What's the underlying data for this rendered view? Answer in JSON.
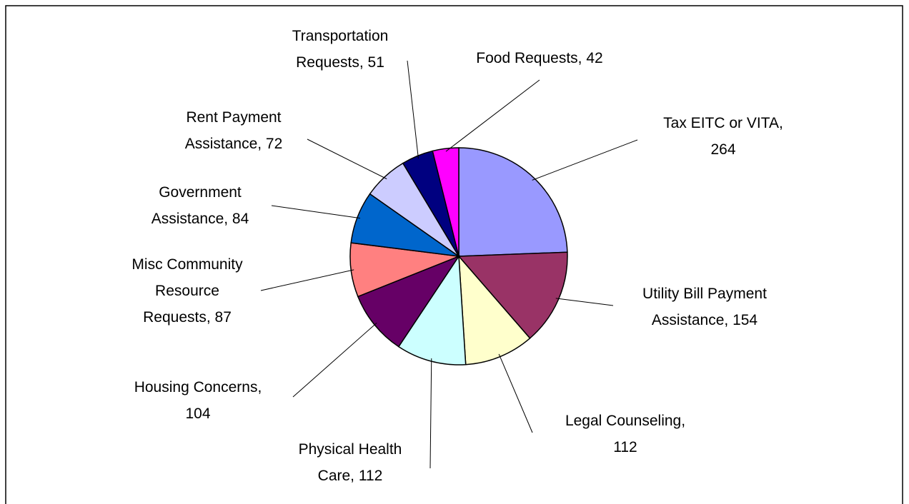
{
  "chart_data": {
    "type": "pie",
    "values": [
      264,
      154,
      112,
      112,
      104,
      87,
      84,
      72,
      51,
      42
    ],
    "value_labels": [
      "Tax EITC or VITA, 264",
      "Utility Bill Payment Assistance, 154",
      "Legal Counseling, 112",
      "Physical Health Care, 112",
      "Housing Concerns, 104",
      "Misc Community Resource Requests, 87",
      "Government Assistance, 84",
      "Rent Payment Assistance, 72",
      "Transportation Requests, 51",
      "Food Requests, 42"
    ],
    "colors": [
      "#9999ff",
      "#993366",
      "#ffffcc",
      "#ccffff",
      "#660066",
      "#ff8080",
      "#0066cc",
      "#ccccff",
      "#000080",
      "#ff00ff"
    ]
  }
}
